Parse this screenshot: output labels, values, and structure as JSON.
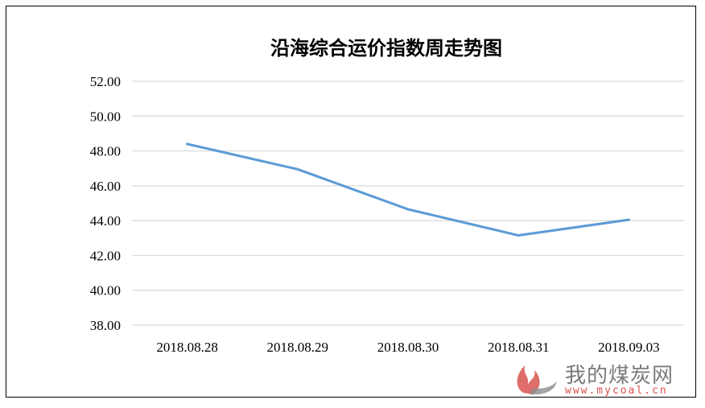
{
  "chart_data": {
    "type": "line",
    "title": "沿海综合运价指数周走势图",
    "categories": [
      "2018.08.28",
      "2018.08.29",
      "2018.08.30",
      "2018.08.31",
      "2018.09.03"
    ],
    "series": [
      {
        "values": [
          48.4,
          46.95,
          44.65,
          43.15,
          44.05
        ]
      }
    ],
    "ylim": [
      38,
      52
    ],
    "yticks": [
      "38.00",
      "40.00",
      "42.00",
      "44.00",
      "46.00",
      "48.00",
      "50.00",
      "52.00"
    ],
    "grid": true,
    "line_color": "#5b9bd5",
    "grid_color": "#d9d9d9"
  },
  "watermark": {
    "text": "我的煤炭网",
    "url": "www.mycoal.cn",
    "flame_colors": [
      "#d9534f",
      "#8c8c8c"
    ]
  }
}
